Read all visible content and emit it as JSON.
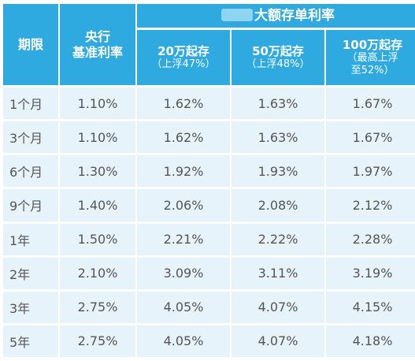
{
  "header": {
    "term": "期限",
    "central_bank_line1": "央行",
    "central_bank_line2": "基准利率",
    "group_title": "大额存单利率",
    "tiers": [
      {
        "line1": "20万起存",
        "line2": "（上浮47%）",
        "line3": ""
      },
      {
        "line1": "50万起存",
        "line2": "（上浮48%）",
        "line3": ""
      },
      {
        "line1": "100万起存",
        "line2": "（最高上浮",
        "line3": "至52%）"
      }
    ]
  },
  "rows": [
    {
      "term": "1个月",
      "base": "1.10%",
      "t20": "1.62%",
      "t50": "1.63%",
      "t100": "1.67%"
    },
    {
      "term": "3个月",
      "base": "1.10%",
      "t20": "1.62%",
      "t50": "1.63%",
      "t100": "1.67%"
    },
    {
      "term": "6个月",
      "base": "1.30%",
      "t20": "1.92%",
      "t50": "1.93%",
      "t100": "1.97%"
    },
    {
      "term": "9个月",
      "base": "1.40%",
      "t20": "2.06%",
      "t50": "2.08%",
      "t100": "2.12%"
    },
    {
      "term": "1年",
      "base": "1.50%",
      "t20": "2.21%",
      "t50": "2.22%",
      "t100": "2.28%"
    },
    {
      "term": "2年",
      "base": "2.10%",
      "t20": "3.09%",
      "t50": "3.11%",
      "t100": "3.19%"
    },
    {
      "term": "3年",
      "base": "2.75%",
      "t20": "4.05%",
      "t50": "4.07%",
      "t100": "4.15%"
    },
    {
      "term": "5年",
      "base": "2.75%",
      "t20": "4.05%",
      "t50": "4.07%",
      "t100": "4.18%"
    }
  ]
}
